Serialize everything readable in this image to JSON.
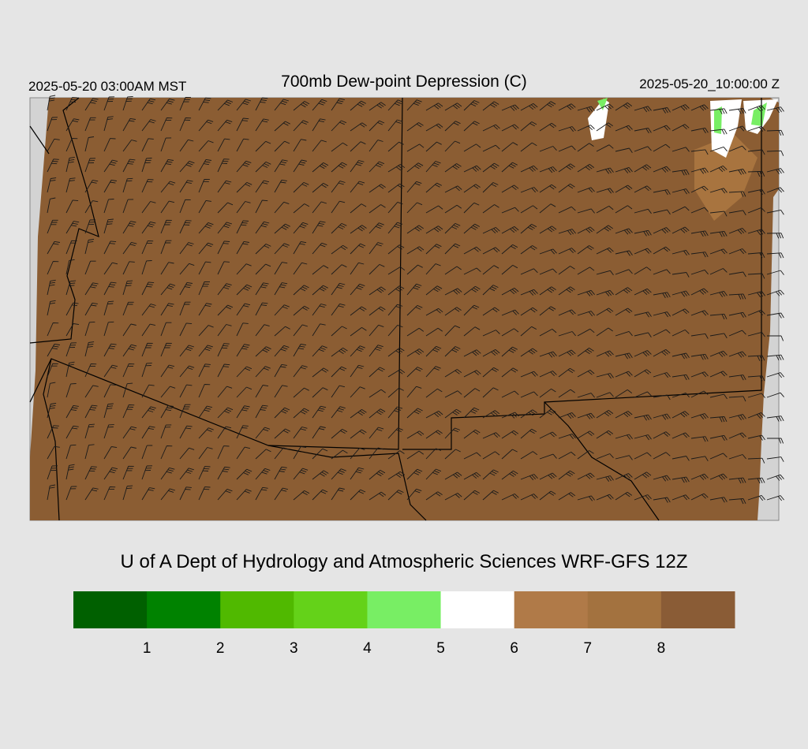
{
  "header": {
    "left": "2025-05-20 03:00AM MST",
    "title": "700mb Dew-point Depression (C)",
    "right": "2025-05-20_10:00:00 Z"
  },
  "credit": "U of A Dept of Hydrology and Atmospheric Sciences WRF-GFS 12Z",
  "colorbar": {
    "colors": [
      "#006000",
      "#008200",
      "#50b900",
      "#64d219",
      "#78ee64",
      "#ffffff",
      "#b07a48",
      "#a3723f",
      "#8a5c36"
    ],
    "ticks": [
      1,
      2,
      3,
      4,
      5,
      6,
      7,
      8
    ]
  }
}
